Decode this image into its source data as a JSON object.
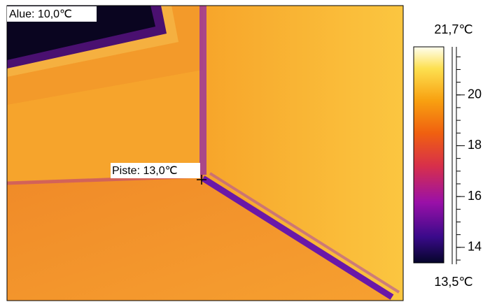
{
  "image": {
    "area_label": "Alue: 10,0℃",
    "spot_label": "Piste: 13,0℃"
  },
  "scale": {
    "max": {
      "value": 21.7,
      "label": "21,7℃"
    },
    "min": {
      "value": 13.5,
      "label": "13,5℃"
    },
    "ticks": [
      20,
      18,
      16,
      14
    ]
  }
}
